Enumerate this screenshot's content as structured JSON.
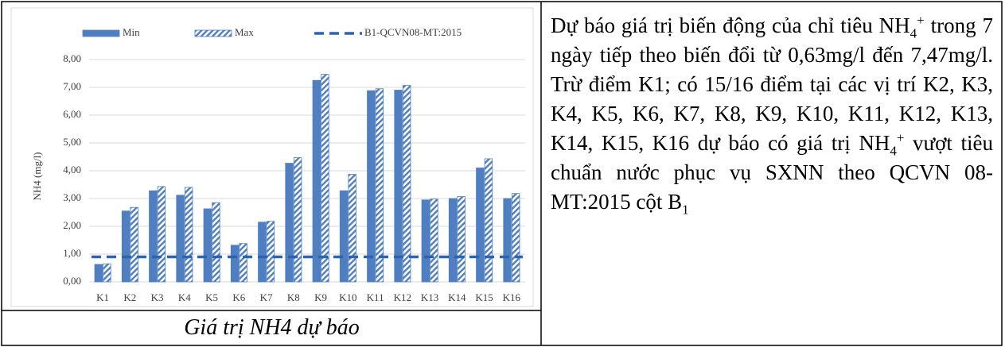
{
  "chart_data": {
    "type": "bar",
    "ylabel": "NH4 (mg/l)",
    "categories": [
      "K1",
      "K2",
      "K3",
      "K4",
      "K5",
      "K6",
      "K7",
      "K8",
      "K9",
      "K10",
      "K11",
      "K12",
      "K13",
      "K14",
      "K15",
      "K16"
    ],
    "series": [
      {
        "name": "Min",
        "color": "#4f7fc1",
        "pattern": "solid",
        "values": [
          0.63,
          2.55,
          3.28,
          3.12,
          2.63,
          1.32,
          2.15,
          4.27,
          7.25,
          3.28,
          6.88,
          6.9,
          2.95,
          3.0,
          4.1,
          3.0
        ]
      },
      {
        "name": "Max",
        "color": "#4f7fc1",
        "pattern": "hatch",
        "values": [
          0.65,
          2.68,
          3.43,
          3.4,
          2.85,
          1.38,
          2.18,
          4.47,
          7.47,
          3.87,
          6.95,
          7.07,
          2.98,
          3.07,
          4.43,
          3.18
        ]
      }
    ],
    "reference_line": {
      "name": "B1-QCVN08-MT:2015",
      "value": 0.9,
      "color": "#2e64ad",
      "style": "dashed"
    },
    "ylim": [
      0,
      8
    ],
    "yticks": [
      {
        "value": 0,
        "label": "0,00"
      },
      {
        "value": 1,
        "label": "1,00"
      },
      {
        "value": 2,
        "label": "2,00"
      },
      {
        "value": 3,
        "label": "3,00"
      },
      {
        "value": 4,
        "label": "4,00"
      },
      {
        "value": 5,
        "label": "5,00"
      },
      {
        "value": 6,
        "label": "6,00"
      },
      {
        "value": 7,
        "label": "7,00"
      },
      {
        "value": 8,
        "label": "8,00"
      }
    ],
    "grid": true,
    "legend": "top"
  },
  "caption": "Giá trị NH4 dự báo",
  "description": [
    "Dự báo giá trị biến động của chỉ tiêu NH",
    "4",
    "+",
    " trong 7 ngày tiếp theo biến đổi từ 0,63mg/l đến 7,47mg/l. Trừ điểm K1; có 15/16 điểm tại các vị trí K2, K3, K4, K5, K6, K7, K8, K9, K10, K11, K12, K13, K14, K15, K16 dự báo có giá trị NH",
    "4",
    "+",
    " vượt tiêu chuẩn nước phục vụ SXNN theo QCVN 08-MT:2015 cột B",
    "1"
  ]
}
